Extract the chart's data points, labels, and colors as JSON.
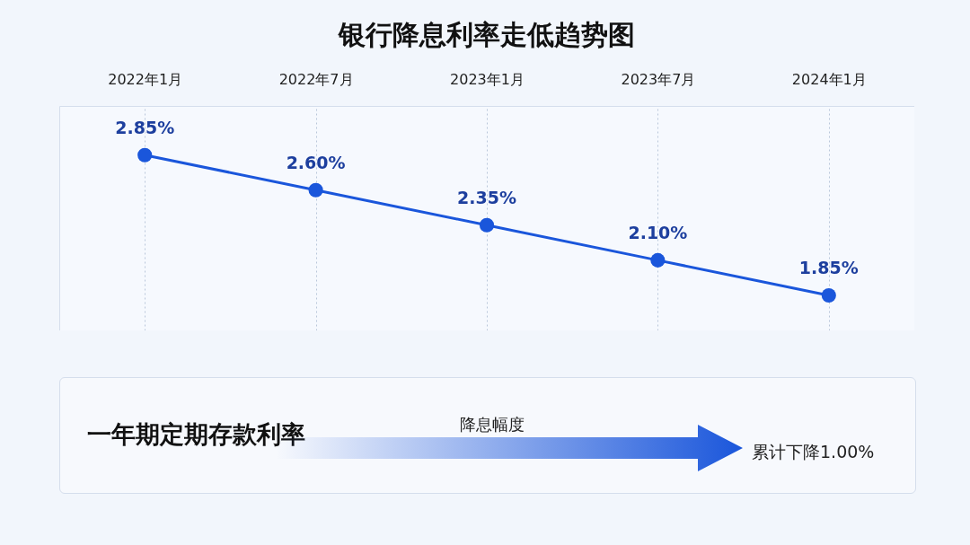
{
  "chart_data": {
    "type": "line",
    "title": "银行降息利率走低趋势图",
    "categories": [
      "2022年1月",
      "2022年7月",
      "2023年1月",
      "2023年7月",
      "2024年1月"
    ],
    "values": [
      2.85,
      2.6,
      2.35,
      2.1,
      1.85
    ],
    "color": "#1a56db",
    "marker": "circle",
    "value_labels": [
      "2.85%",
      "2.60%",
      "2.35%",
      "2.10%",
      "1.85%"
    ],
    "grid": "x",
    "tick_labels": "x",
    "annotations": [
      "一年期定期存款利率",
      "降息幅度",
      "累计下降1.00%"
    ]
  }
}
